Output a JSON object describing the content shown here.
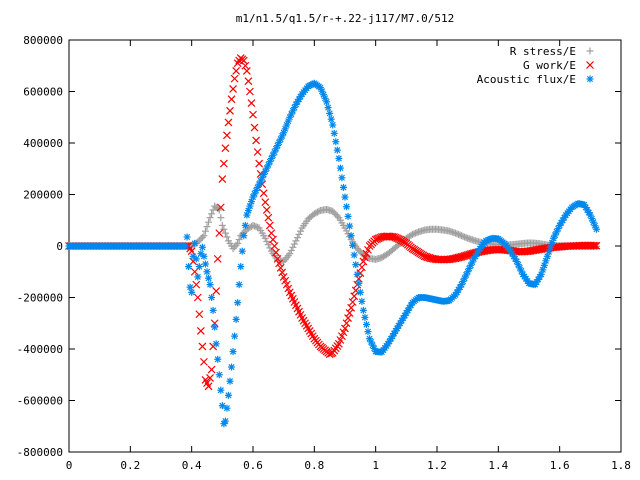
{
  "chart_data": {
    "type": "scatter",
    "title": "m1/n1.5/q1.5/r-+.22-j117/M7.0/512",
    "xlabel": "",
    "ylabel": "",
    "xlim": [
      0,
      1.8
    ],
    "ylim": [
      -800000,
      800000
    ],
    "grid": false,
    "legend_position": "top-right",
    "x_ticks": [
      "0",
      "0.2",
      "0.4",
      "0.6",
      "0.8",
      "1",
      "1.2",
      "1.4",
      "1.6",
      "1.8"
    ],
    "y_ticks": [
      "800000",
      "600000",
      "400000",
      "200000",
      "0",
      "-200000",
      "-400000",
      "-600000",
      "-800000"
    ],
    "series": [
      {
        "name": "R stress/E",
        "marker": "+",
        "color": "#a0a0a0",
        "points": [
          [
            0.0,
            0
          ],
          [
            0.39,
            0
          ],
          [
            0.4,
            2000
          ],
          [
            0.42,
            15000
          ],
          [
            0.44,
            40000
          ],
          [
            0.46,
            110000
          ],
          [
            0.475,
            155000
          ],
          [
            0.49,
            140000
          ],
          [
            0.5,
            80000
          ],
          [
            0.52,
            20000
          ],
          [
            0.535,
            -10000
          ],
          [
            0.55,
            10000
          ],
          [
            0.56,
            40000
          ],
          [
            0.58,
            65000
          ],
          [
            0.6,
            80000
          ],
          [
            0.62,
            70000
          ],
          [
            0.64,
            30000
          ],
          [
            0.66,
            -20000
          ],
          [
            0.68,
            -55000
          ],
          [
            0.7,
            -60000
          ],
          [
            0.72,
            -30000
          ],
          [
            0.74,
            20000
          ],
          [
            0.76,
            70000
          ],
          [
            0.78,
            105000
          ],
          [
            0.8,
            125000
          ],
          [
            0.82,
            138000
          ],
          [
            0.84,
            142000
          ],
          [
            0.86,
            135000
          ],
          [
            0.88,
            110000
          ],
          [
            0.9,
            70000
          ],
          [
            0.92,
            25000
          ],
          [
            0.94,
            -10000
          ],
          [
            0.96,
            -35000
          ],
          [
            0.98,
            -48000
          ],
          [
            1.0,
            -52000
          ],
          [
            1.02,
            -45000
          ],
          [
            1.04,
            -30000
          ],
          [
            1.06,
            -10000
          ],
          [
            1.08,
            10000
          ],
          [
            1.1,
            30000
          ],
          [
            1.12,
            45000
          ],
          [
            1.14,
            55000
          ],
          [
            1.16,
            62000
          ],
          [
            1.18,
            65000
          ],
          [
            1.2,
            65000
          ],
          [
            1.22,
            62000
          ],
          [
            1.24,
            58000
          ],
          [
            1.26,
            50000
          ],
          [
            1.28,
            40000
          ],
          [
            1.3,
            30000
          ],
          [
            1.32,
            22000
          ],
          [
            1.34,
            15000
          ],
          [
            1.36,
            10000
          ],
          [
            1.38,
            7000
          ],
          [
            1.4,
            5000
          ],
          [
            1.42,
            4000
          ],
          [
            1.44,
            5000
          ],
          [
            1.46,
            7000
          ],
          [
            1.48,
            10000
          ],
          [
            1.5,
            12000
          ],
          [
            1.52,
            11000
          ],
          [
            1.54,
            8000
          ],
          [
            1.56,
            4000
          ],
          [
            1.58,
            2000
          ],
          [
            1.6,
            1000
          ],
          [
            1.62,
            500
          ],
          [
            1.64,
            0
          ],
          [
            1.66,
            -1000
          ],
          [
            1.68,
            -2000
          ],
          [
            1.7,
            -2000
          ],
          [
            1.72,
            -1000
          ]
        ]
      },
      {
        "name": "G work/E",
        "marker": "x",
        "color": "#ff0000",
        "points": [
          [
            0.0,
            0
          ],
          [
            0.39,
            0
          ],
          [
            0.4,
            -20000
          ],
          [
            0.41,
            -100000
          ],
          [
            0.42,
            -200000
          ],
          [
            0.43,
            -330000
          ],
          [
            0.44,
            -450000
          ],
          [
            0.445,
            -520000
          ],
          [
            0.455,
            -545000
          ],
          [
            0.465,
            -480000
          ],
          [
            0.475,
            -300000
          ],
          [
            0.485,
            -50000
          ],
          [
            0.495,
            150000
          ],
          [
            0.5,
            260000
          ],
          [
            0.51,
            380000
          ],
          [
            0.52,
            480000
          ],
          [
            0.53,
            570000
          ],
          [
            0.54,
            650000
          ],
          [
            0.55,
            710000
          ],
          [
            0.56,
            730000
          ],
          [
            0.57,
            720000
          ],
          [
            0.58,
            680000
          ],
          [
            0.59,
            600000
          ],
          [
            0.6,
            510000
          ],
          [
            0.61,
            410000
          ],
          [
            0.62,
            320000
          ],
          [
            0.63,
            240000
          ],
          [
            0.64,
            170000
          ],
          [
            0.65,
            110000
          ],
          [
            0.66,
            50000
          ],
          [
            0.67,
            0
          ],
          [
            0.68,
            -50000
          ],
          [
            0.7,
            -120000
          ],
          [
            0.72,
            -180000
          ],
          [
            0.74,
            -230000
          ],
          [
            0.76,
            -280000
          ],
          [
            0.78,
            -320000
          ],
          [
            0.8,
            -360000
          ],
          [
            0.82,
            -390000
          ],
          [
            0.84,
            -410000
          ],
          [
            0.85,
            -420000
          ],
          [
            0.86,
            -415000
          ],
          [
            0.88,
            -380000
          ],
          [
            0.9,
            -320000
          ],
          [
            0.92,
            -240000
          ],
          [
            0.94,
            -150000
          ],
          [
            0.96,
            -60000
          ],
          [
            0.98,
            0
          ],
          [
            1.0,
            25000
          ],
          [
            1.02,
            35000
          ],
          [
            1.04,
            38000
          ],
          [
            1.06,
            35000
          ],
          [
            1.08,
            25000
          ],
          [
            1.1,
            10000
          ],
          [
            1.12,
            -10000
          ],
          [
            1.14,
            -25000
          ],
          [
            1.16,
            -40000
          ],
          [
            1.18,
            -48000
          ],
          [
            1.2,
            -52000
          ],
          [
            1.22,
            -53000
          ],
          [
            1.24,
            -52000
          ],
          [
            1.26,
            -48000
          ],
          [
            1.28,
            -42000
          ],
          [
            1.3,
            -35000
          ],
          [
            1.32,
            -28000
          ],
          [
            1.34,
            -22000
          ],
          [
            1.36,
            -18000
          ],
          [
            1.38,
            -15000
          ],
          [
            1.4,
            -14000
          ],
          [
            1.42,
            -15000
          ],
          [
            1.44,
            -18000
          ],
          [
            1.46,
            -22000
          ],
          [
            1.48,
            -22000
          ],
          [
            1.5,
            -20000
          ],
          [
            1.52,
            -16000
          ],
          [
            1.54,
            -12000
          ],
          [
            1.56,
            -8000
          ],
          [
            1.58,
            -5000
          ],
          [
            1.6,
            -3000
          ],
          [
            1.62,
            -1000
          ],
          [
            1.64,
            0
          ],
          [
            1.66,
            1000
          ],
          [
            1.68,
            2000
          ],
          [
            1.7,
            2000
          ],
          [
            1.72,
            1000
          ]
        ]
      },
      {
        "name": "Acoustic flux/E",
        "marker": "*",
        "color": "#0088ee",
        "points": [
          [
            0.0,
            0
          ],
          [
            0.02,
            0
          ],
          [
            0.04,
            0
          ],
          [
            0.06,
            0
          ],
          [
            0.08,
            0
          ],
          [
            0.1,
            0
          ],
          [
            0.12,
            0
          ],
          [
            0.14,
            0
          ],
          [
            0.16,
            0
          ],
          [
            0.18,
            0
          ],
          [
            0.2,
            0
          ],
          [
            0.22,
            0
          ],
          [
            0.24,
            0
          ],
          [
            0.26,
            0
          ],
          [
            0.28,
            0
          ],
          [
            0.3,
            0
          ],
          [
            0.32,
            0
          ],
          [
            0.34,
            0
          ],
          [
            0.36,
            0
          ],
          [
            0.38,
            0
          ],
          [
            0.385,
            35000
          ],
          [
            0.39,
            -80000
          ],
          [
            0.395,
            -160000
          ],
          [
            0.4,
            -180000
          ],
          [
            0.405,
            -40000
          ],
          [
            0.41,
            10000
          ],
          [
            0.415,
            -50000
          ],
          [
            0.42,
            -120000
          ],
          [
            0.425,
            -80000
          ],
          [
            0.43,
            -30000
          ],
          [
            0.435,
            -5000
          ],
          [
            0.44,
            -40000
          ],
          [
            0.45,
            -100000
          ],
          [
            0.46,
            -150000
          ],
          [
            0.47,
            -250000
          ],
          [
            0.48,
            -380000
          ],
          [
            0.49,
            -500000
          ],
          [
            0.5,
            -620000
          ],
          [
            0.505,
            -690000
          ],
          [
            0.51,
            -680000
          ],
          [
            0.52,
            -580000
          ],
          [
            0.53,
            -470000
          ],
          [
            0.54,
            -350000
          ],
          [
            0.55,
            -220000
          ],
          [
            0.56,
            -80000
          ],
          [
            0.57,
            40000
          ],
          [
            0.58,
            120000
          ],
          [
            0.6,
            190000
          ],
          [
            0.62,
            240000
          ],
          [
            0.64,
            290000
          ],
          [
            0.66,
            340000
          ],
          [
            0.68,
            390000
          ],
          [
            0.7,
            440000
          ],
          [
            0.72,
            500000
          ],
          [
            0.74,
            550000
          ],
          [
            0.76,
            590000
          ],
          [
            0.78,
            620000
          ],
          [
            0.8,
            632000
          ],
          [
            0.82,
            615000
          ],
          [
            0.84,
            560000
          ],
          [
            0.86,
            470000
          ],
          [
            0.88,
            340000
          ],
          [
            0.9,
            190000
          ],
          [
            0.92,
            40000
          ],
          [
            0.94,
            -110000
          ],
          [
            0.96,
            -250000
          ],
          [
            0.98,
            -360000
          ],
          [
            1.0,
            -410000
          ],
          [
            1.02,
            -412000
          ],
          [
            1.04,
            -380000
          ],
          [
            1.06,
            -340000
          ],
          [
            1.08,
            -300000
          ],
          [
            1.1,
            -260000
          ],
          [
            1.12,
            -220000
          ],
          [
            1.14,
            -200000
          ],
          [
            1.16,
            -200000
          ],
          [
            1.18,
            -205000
          ],
          [
            1.2,
            -210000
          ],
          [
            1.22,
            -215000
          ],
          [
            1.24,
            -212000
          ],
          [
            1.26,
            -190000
          ],
          [
            1.28,
            -150000
          ],
          [
            1.3,
            -100000
          ],
          [
            1.32,
            -50000
          ],
          [
            1.34,
            -10000
          ],
          [
            1.36,
            20000
          ],
          [
            1.38,
            30000
          ],
          [
            1.4,
            28000
          ],
          [
            1.42,
            10000
          ],
          [
            1.44,
            -20000
          ],
          [
            1.46,
            -60000
          ],
          [
            1.48,
            -110000
          ],
          [
            1.5,
            -145000
          ],
          [
            1.52,
            -150000
          ],
          [
            1.54,
            -110000
          ],
          [
            1.56,
            -40000
          ],
          [
            1.58,
            30000
          ],
          [
            1.6,
            80000
          ],
          [
            1.62,
            120000
          ],
          [
            1.64,
            150000
          ],
          [
            1.66,
            165000
          ],
          [
            1.68,
            160000
          ],
          [
            1.7,
            120000
          ],
          [
            1.72,
            65000
          ]
        ]
      }
    ]
  }
}
